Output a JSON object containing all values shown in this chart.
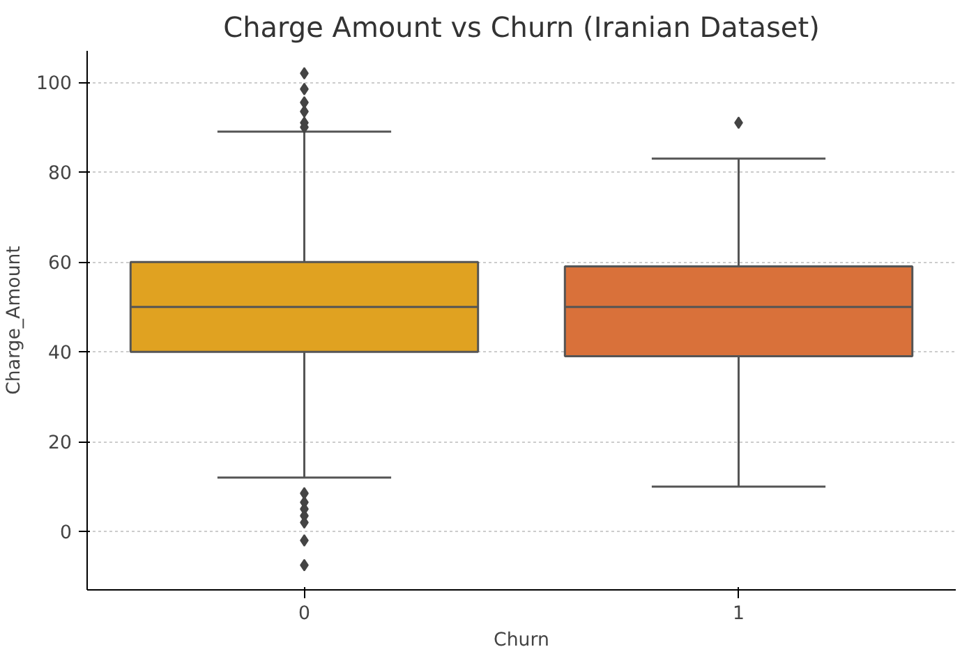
{
  "chart_data": {
    "type": "box",
    "title": "Charge Amount vs Churn (Iranian Dataset)",
    "xlabel": "Churn",
    "ylabel": "Charge_Amount",
    "categories": [
      "0",
      "1"
    ],
    "series": [
      {
        "colors": [
          "#e0a221",
          "#d9713a"
        ],
        "boxes": [
          {
            "low": 12,
            "q1": 40,
            "median": 50,
            "q3": 60,
            "high": 89,
            "outliers": [
              102,
              98.5,
              95.5,
              93.5,
              91,
              90,
              8.5,
              6.5,
              5,
              3.5,
              2,
              -2,
              -7.5
            ]
          },
          {
            "low": 10,
            "q1": 39,
            "median": 50,
            "q3": 59,
            "high": 83,
            "outliers": [
              91
            ]
          }
        ]
      }
    ],
    "ylim": [
      -13,
      107
    ],
    "yticks": [
      0,
      20,
      40,
      60,
      80,
      100
    ],
    "grid": "y",
    "marker": "diamond"
  }
}
